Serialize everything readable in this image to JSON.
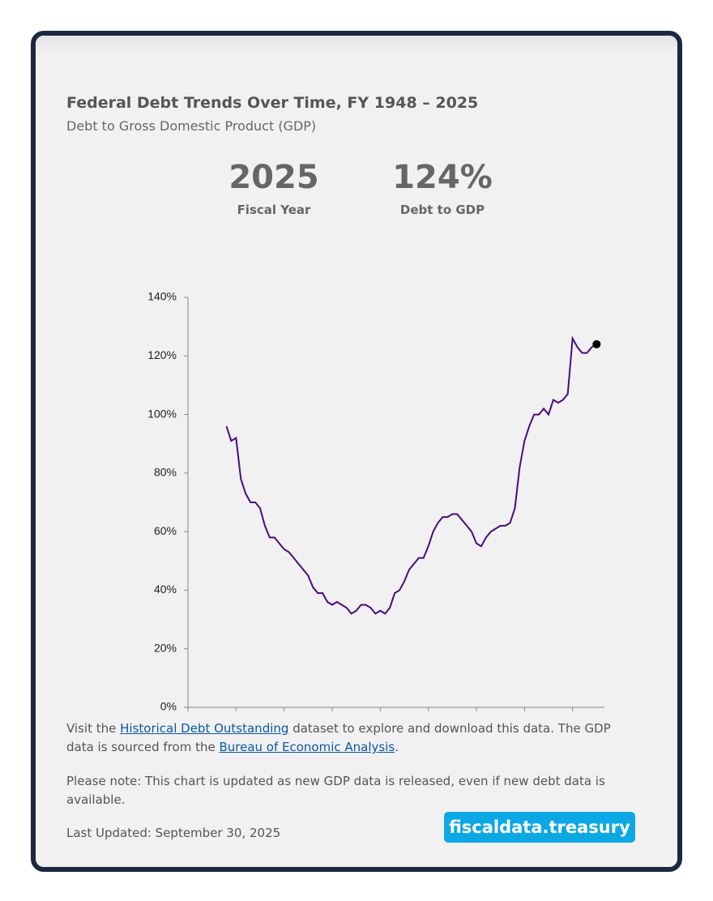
{
  "chart_data": {
    "type": "line",
    "title": "Federal Debt Trends Over Time, FY 1948 – 2025",
    "subtitle": "Debt to Gross Domestic Product (GDP)",
    "x": [
      1948,
      1949,
      1950,
      1951,
      1952,
      1953,
      1954,
      1955,
      1956,
      1957,
      1958,
      1959,
      1960,
      1961,
      1962,
      1963,
      1964,
      1965,
      1966,
      1967,
      1968,
      1969,
      1970,
      1971,
      1972,
      1973,
      1974,
      1975,
      1976,
      1977,
      1978,
      1979,
      1980,
      1981,
      1982,
      1983,
      1984,
      1985,
      1986,
      1987,
      1988,
      1989,
      1990,
      1991,
      1992,
      1993,
      1994,
      1995,
      1996,
      1997,
      1998,
      1999,
      2000,
      2001,
      2002,
      2003,
      2004,
      2005,
      2006,
      2007,
      2008,
      2009,
      2010,
      2011,
      2012,
      2013,
      2014,
      2015,
      2016,
      2017,
      2018,
      2019,
      2020,
      2021,
      2022,
      2023,
      2024,
      2025
    ],
    "values": [
      96,
      91,
      92,
      78,
      73,
      70,
      70,
      68,
      62,
      58,
      58,
      56,
      54,
      53,
      51,
      49,
      47,
      45,
      41,
      39,
      39,
      36,
      35,
      36,
      35,
      34,
      32,
      33,
      35,
      35,
      34,
      32,
      33,
      32,
      34,
      39,
      40,
      43,
      47,
      49,
      51,
      51,
      55,
      60,
      63,
      65,
      65,
      66,
      66,
      64,
      62,
      60,
      56,
      55,
      58,
      60,
      61,
      62,
      62,
      63,
      68,
      82,
      91,
      96,
      100,
      100,
      102,
      100,
      105,
      104,
      105,
      107,
      126,
      123,
      121,
      121,
      123,
      124
    ],
    "color": "#4a0a80",
    "highlight_color": "#000000",
    "xlim": [
      1940,
      2030
    ],
    "xticks": [
      1940,
      1950,
      1960,
      1970,
      1980,
      1990,
      2000,
      2010,
      2020,
      2030
    ],
    "ylim": [
      0,
      140
    ],
    "yticks": [
      {
        "value": 0,
        "label": "0%"
      },
      {
        "value": 20,
        "label": "20%"
      },
      {
        "value": 40,
        "label": "40%"
      },
      {
        "value": 60,
        "label": "60%"
      },
      {
        "value": 80,
        "label": "80%"
      },
      {
        "value": 100,
        "label": "100%"
      },
      {
        "value": 120,
        "label": "120%"
      },
      {
        "value": 140,
        "label": "140%"
      }
    ],
    "grid": false
  },
  "highlight": {
    "year": "2025",
    "year_label": "Fiscal Year",
    "value": "124%",
    "value_label": "Debt to GDP"
  },
  "notes": {
    "source": [
      "Visit the ",
      "Historical Debt Outstanding",
      " dataset to explore and download this data. The GDP data is sourced from the ",
      "Bureau of Economic Analysis",
      "."
    ],
    "disclaimer": "Please note: This chart is updated as new GDP data is released, even if new debt data is available.",
    "updated": "Last Updated: September 30, 2025"
  },
  "badge": "fiscaldata.treasury"
}
